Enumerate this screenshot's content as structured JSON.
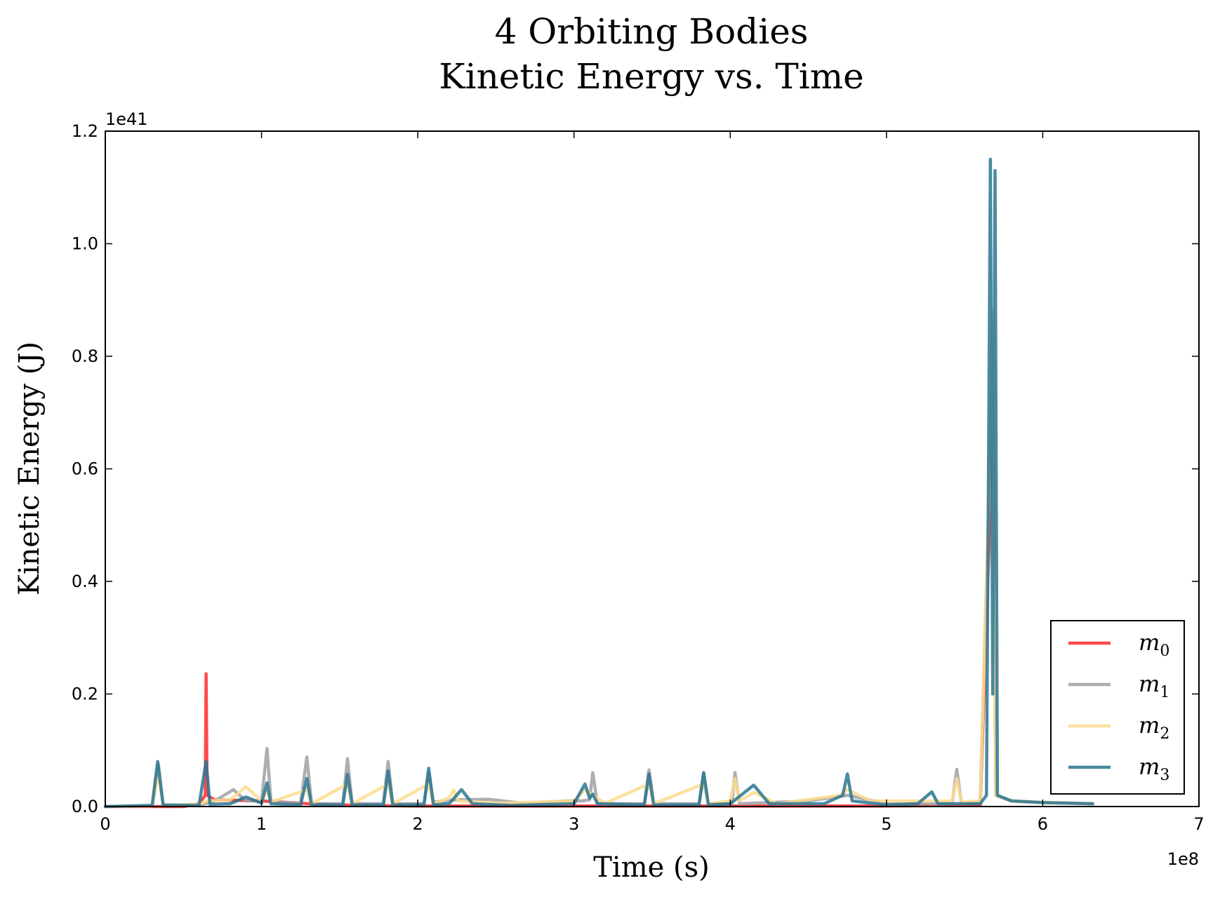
{
  "chart_data": {
    "type": "line",
    "title": "4 Orbiting Bodies",
    "subtitle": "Kinetic Energy vs. Time",
    "xlabel": "Time (s)",
    "ylabel": "Kinetic Energy (J)",
    "x_offset_label": "1e8",
    "y_offset_label": "1e41",
    "xlim": [
      0,
      700000000.0
    ],
    "ylim": [
      0,
      1.2e+41
    ],
    "x_scale_factor": 100000000.0,
    "y_scale_factor": 1e+41,
    "x_ticks": [
      "0",
      "1",
      "2",
      "3",
      "4",
      "5",
      "6",
      "7"
    ],
    "y_ticks": [
      "0.0",
      "0.2",
      "0.4",
      "0.6",
      "0.8",
      "1.0",
      "1.2"
    ],
    "grid": false,
    "legend_position": "lower-right",
    "series": [
      {
        "name": "m_0",
        "legend_main": "m",
        "legend_sub": "0",
        "color": "#ff2a2a",
        "points": [
          [
            0,
            0.0
          ],
          [
            0.5,
            0.0
          ],
          [
            0.6,
            0.005
          ],
          [
            0.64,
            0.02
          ],
          [
            0.645,
            0.236
          ],
          [
            0.652,
            0.02
          ],
          [
            0.7,
            0.012
          ],
          [
            1.0,
            0.01
          ],
          [
            1.3,
            0.005
          ],
          [
            1.6,
            0.002
          ],
          [
            2.0,
            0.001
          ],
          [
            3.0,
            0.001
          ],
          [
            4.0,
            0.001
          ],
          [
            5.0,
            0.001
          ],
          [
            5.6,
            0.002
          ],
          [
            5.66,
            0.5
          ],
          [
            5.68,
            0.88
          ],
          [
            5.7,
            0.02
          ],
          [
            5.8,
            0.01
          ],
          [
            6.0,
            0.007
          ],
          [
            6.32,
            0.005
          ]
        ]
      },
      {
        "name": "m_1",
        "legend_main": "m",
        "legend_sub": "1",
        "color": "#a09fa6",
        "points": [
          [
            0,
            0.0
          ],
          [
            0.3,
            0.001
          ],
          [
            0.34,
            0.075
          ],
          [
            0.37,
            0.002
          ],
          [
            0.6,
            0.003
          ],
          [
            0.64,
            0.005
          ],
          [
            0.7,
            0.01
          ],
          [
            0.82,
            0.03
          ],
          [
            0.9,
            0.01
          ],
          [
            1.0,
            0.01
          ],
          [
            1.035,
            0.103
          ],
          [
            1.06,
            0.01
          ],
          [
            1.25,
            0.005
          ],
          [
            1.29,
            0.088
          ],
          [
            1.32,
            0.005
          ],
          [
            1.52,
            0.005
          ],
          [
            1.55,
            0.085
          ],
          [
            1.58,
            0.005
          ],
          [
            1.78,
            0.005
          ],
          [
            1.81,
            0.08
          ],
          [
            1.84,
            0.005
          ],
          [
            2.04,
            0.005
          ],
          [
            2.07,
            0.06
          ],
          [
            2.1,
            0.008
          ],
          [
            2.25,
            0.012
          ],
          [
            2.45,
            0.013
          ],
          [
            2.7,
            0.005
          ],
          [
            2.95,
            0.01
          ],
          [
            3.05,
            0.01
          ],
          [
            3.1,
            0.012
          ],
          [
            3.12,
            0.06
          ],
          [
            3.15,
            0.005
          ],
          [
            3.45,
            0.005
          ],
          [
            3.48,
            0.065
          ],
          [
            3.51,
            0.005
          ],
          [
            3.8,
            0.005
          ],
          [
            3.83,
            0.06
          ],
          [
            3.86,
            0.005
          ],
          [
            4.01,
            0.005
          ],
          [
            4.03,
            0.06
          ],
          [
            4.06,
            0.005
          ],
          [
            4.5,
            0.01
          ],
          [
            4.75,
            0.02
          ],
          [
            5.0,
            0.005
          ],
          [
            5.42,
            0.005
          ],
          [
            5.45,
            0.066
          ],
          [
            5.48,
            0.005
          ],
          [
            5.6,
            0.008
          ],
          [
            5.66,
            0.6
          ],
          [
            5.68,
            0.88
          ],
          [
            5.7,
            0.02
          ],
          [
            5.8,
            0.01
          ],
          [
            6.0,
            0.007
          ],
          [
            6.32,
            0.005
          ]
        ]
      },
      {
        "name": "m_2",
        "legend_main": "m",
        "legend_sub": "2",
        "color": "#fddc8e",
        "points": [
          [
            0,
            0.0
          ],
          [
            0.3,
            0.001
          ],
          [
            0.34,
            0.06
          ],
          [
            0.37,
            0.002
          ],
          [
            0.6,
            0.004
          ],
          [
            0.65,
            0.01
          ],
          [
            0.8,
            0.012
          ],
          [
            0.9,
            0.035
          ],
          [
            1.0,
            0.01
          ],
          [
            1.035,
            0.03
          ],
          [
            1.06,
            0.008
          ],
          [
            1.29,
            0.03
          ],
          [
            1.32,
            0.005
          ],
          [
            1.55,
            0.04
          ],
          [
            1.58,
            0.005
          ],
          [
            1.81,
            0.04
          ],
          [
            1.84,
            0.005
          ],
          [
            2.07,
            0.04
          ],
          [
            2.1,
            0.005
          ],
          [
            2.2,
            0.015
          ],
          [
            2.23,
            0.03
          ],
          [
            2.26,
            0.01
          ],
          [
            2.5,
            0.006
          ],
          [
            3.0,
            0.01
          ],
          [
            3.07,
            0.03
          ],
          [
            3.12,
            0.02
          ],
          [
            3.2,
            0.006
          ],
          [
            3.48,
            0.04
          ],
          [
            3.51,
            0.005
          ],
          [
            3.83,
            0.04
          ],
          [
            3.86,
            0.005
          ],
          [
            4.0,
            0.01
          ],
          [
            4.03,
            0.05
          ],
          [
            4.06,
            0.01
          ],
          [
            4.15,
            0.025
          ],
          [
            4.3,
            0.005
          ],
          [
            4.7,
            0.02
          ],
          [
            4.75,
            0.03
          ],
          [
            4.9,
            0.01
          ],
          [
            5.2,
            0.01
          ],
          [
            5.42,
            0.01
          ],
          [
            5.45,
            0.05
          ],
          [
            5.48,
            0.008
          ],
          [
            5.6,
            0.01
          ],
          [
            5.66,
            0.6
          ],
          [
            5.68,
            0.88
          ],
          [
            5.7,
            0.02
          ],
          [
            5.8,
            0.01
          ],
          [
            6.0,
            0.007
          ],
          [
            6.32,
            0.005
          ]
        ]
      },
      {
        "name": "m_3",
        "legend_main": "m",
        "legend_sub": "3",
        "color": "#2a7592",
        "points": [
          [
            0,
            0.0
          ],
          [
            0.3,
            0.002
          ],
          [
            0.335,
            0.08
          ],
          [
            0.37,
            0.003
          ],
          [
            0.6,
            0.002
          ],
          [
            0.645,
            0.08
          ],
          [
            0.67,
            0.004
          ],
          [
            0.8,
            0.005
          ],
          [
            0.9,
            0.017
          ],
          [
            1.0,
            0.006
          ],
          [
            1.035,
            0.042
          ],
          [
            1.06,
            0.005
          ],
          [
            1.25,
            0.003
          ],
          [
            1.29,
            0.05
          ],
          [
            1.32,
            0.003
          ],
          [
            1.52,
            0.003
          ],
          [
            1.55,
            0.057
          ],
          [
            1.58,
            0.003
          ],
          [
            1.78,
            0.003
          ],
          [
            1.81,
            0.063
          ],
          [
            1.84,
            0.003
          ],
          [
            2.04,
            0.003
          ],
          [
            2.07,
            0.068
          ],
          [
            2.1,
            0.003
          ],
          [
            2.2,
            0.005
          ],
          [
            2.28,
            0.03
          ],
          [
            2.35,
            0.005
          ],
          [
            2.6,
            0.002
          ],
          [
            3.0,
            0.005
          ],
          [
            3.07,
            0.04
          ],
          [
            3.1,
            0.015
          ],
          [
            3.12,
            0.022
          ],
          [
            3.15,
            0.005
          ],
          [
            3.45,
            0.003
          ],
          [
            3.48,
            0.058
          ],
          [
            3.51,
            0.003
          ],
          [
            3.8,
            0.003
          ],
          [
            3.83,
            0.06
          ],
          [
            3.86,
            0.003
          ],
          [
            4.0,
            0.005
          ],
          [
            4.15,
            0.038
          ],
          [
            4.25,
            0.005
          ],
          [
            4.6,
            0.005
          ],
          [
            4.72,
            0.02
          ],
          [
            4.75,
            0.058
          ],
          [
            4.78,
            0.01
          ],
          [
            5.0,
            0.003
          ],
          [
            5.2,
            0.005
          ],
          [
            5.29,
            0.026
          ],
          [
            5.33,
            0.005
          ],
          [
            5.6,
            0.005
          ],
          [
            5.64,
            0.02
          ],
          [
            5.665,
            1.15
          ],
          [
            5.68,
            0.2
          ],
          [
            5.695,
            1.13
          ],
          [
            5.71,
            0.02
          ],
          [
            5.8,
            0.01
          ],
          [
            6.0,
            0.007
          ],
          [
            6.32,
            0.005
          ]
        ]
      }
    ]
  }
}
